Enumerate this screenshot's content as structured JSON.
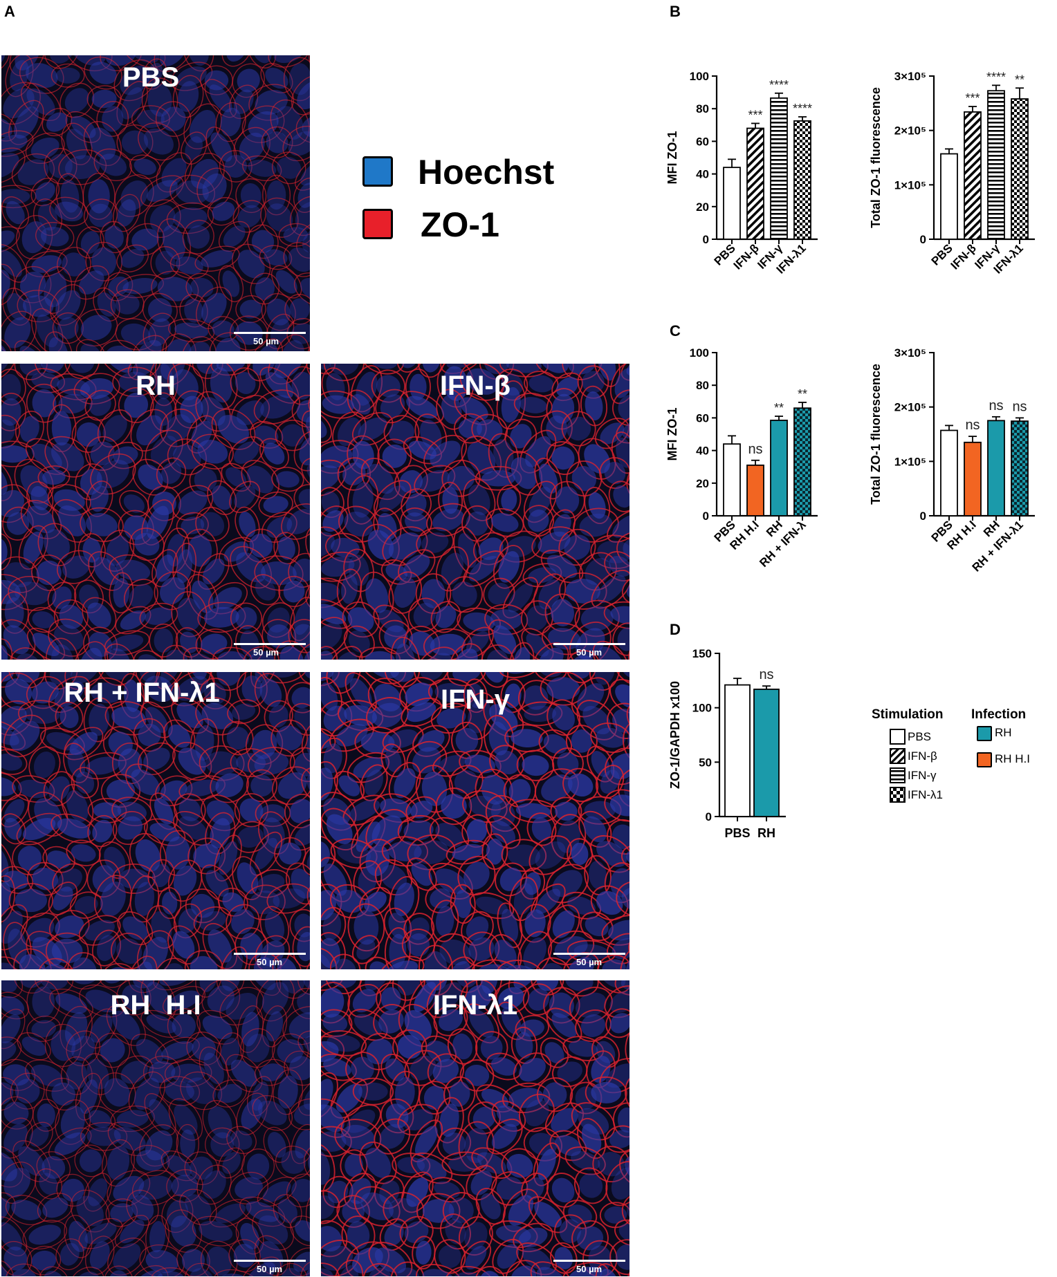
{
  "panel_labels": {
    "a": "A",
    "b": "B",
    "c": "C",
    "d": "D"
  },
  "micrographs": [
    {
      "label": "PBS",
      "scale": "50 µm"
    },
    {
      "label": "RH",
      "scale": "50 µm"
    },
    {
      "label": "IFN-β",
      "scale": "50 µm"
    },
    {
      "label": "RH + IFN-λ1",
      "scale": "50 µm"
    },
    {
      "label": "IFN-γ",
      "scale": "50 µm"
    },
    {
      "label": "RH  H.I",
      "scale": "50 µm"
    },
    {
      "label": "IFN-λ1",
      "scale": "50 µm"
    }
  ],
  "stain_legend": [
    {
      "name": "Hoechst",
      "color": "#1f78c8"
    },
    {
      "name": "ZO-1",
      "color": "#e8202a"
    }
  ],
  "chart_legend": {
    "stimulation_title": "Stimulation",
    "infection_title": "Infection",
    "stimulation": [
      {
        "name": "PBS",
        "pattern": "open"
      },
      {
        "name": "IFN-β",
        "pattern": "diagonal"
      },
      {
        "name": "IFN-γ",
        "pattern": "horizontal"
      },
      {
        "name": "IFN-λ1",
        "pattern": "checker"
      }
    ],
    "infection": [
      {
        "name": "RH",
        "color": "#1b9aaa"
      },
      {
        "name": "RH H.I",
        "color": "#f26522"
      }
    ]
  },
  "chart_data": [
    {
      "panel": "B",
      "type": "bar",
      "ylabel": "MFI ZO-1",
      "ylim": [
        0,
        100
      ],
      "yticks": [
        "0",
        "20",
        "40",
        "60",
        "80",
        "100"
      ],
      "categories": [
        "PBS",
        "IFN-β",
        "IFN-γ",
        "IFN-λ1"
      ],
      "values": [
        44,
        68,
        86.5,
        72.5
      ],
      "errors": [
        5,
        3,
        3,
        2.5
      ],
      "annotations": [
        "",
        "***",
        "****",
        "****"
      ],
      "fills": [
        "open",
        "diagonal",
        "horizontal",
        "checker"
      ]
    },
    {
      "panel": "B",
      "type": "bar",
      "ylabel": "Total ZO-1 fluorescence",
      "ylim": [
        0,
        300000
      ],
      "yticks": [
        "0",
        "1×10⁵",
        "2×10⁵",
        "3×10⁵"
      ],
      "categories": [
        "PBS",
        "IFN-β",
        "IFN-γ",
        "IFN-λ1"
      ],
      "values": [
        157000,
        234000,
        273000,
        258000
      ],
      "errors": [
        9000,
        10000,
        10000,
        20000
      ],
      "annotations": [
        "",
        "***",
        "****",
        "**"
      ],
      "fills": [
        "open",
        "diagonal",
        "horizontal",
        "checker"
      ]
    },
    {
      "panel": "C",
      "type": "bar",
      "ylabel": "MFI ZO-1",
      "ylim": [
        0,
        100
      ],
      "yticks": [
        "0",
        "20",
        "40",
        "60",
        "80",
        "100"
      ],
      "categories": [
        "PBS",
        "RH H.I",
        "RH",
        "RH + IFN-λ"
      ],
      "values": [
        44,
        31,
        58.5,
        66
      ],
      "errors": [
        5,
        3,
        2.5,
        3.5
      ],
      "annotations": [
        "",
        "ns",
        "**",
        "**"
      ],
      "fills": [
        "open",
        "orange",
        "teal",
        "teal-checker"
      ]
    },
    {
      "panel": "C",
      "type": "bar",
      "ylabel": "Total ZO-1 fluorescence",
      "ylim": [
        0,
        300000
      ],
      "yticks": [
        "0",
        "1×10⁵",
        "2×10⁵",
        "3×10⁵"
      ],
      "categories": [
        "PBS",
        "RH H.I",
        "RH",
        "RH + IFN-λ1"
      ],
      "values": [
        157000,
        135000,
        175000,
        174000
      ],
      "errors": [
        9000,
        11000,
        7000,
        6000
      ],
      "annotations": [
        "",
        "ns",
        "ns",
        "ns"
      ],
      "fills": [
        "open",
        "orange",
        "teal",
        "teal-checker"
      ]
    },
    {
      "panel": "D",
      "type": "bar",
      "ylabel": "ZO-1/GAPDH x100",
      "ylim": [
        0,
        150
      ],
      "yticks": [
        "0",
        "50",
        "100",
        "150"
      ],
      "categories": [
        "PBS",
        "RH"
      ],
      "values": [
        121,
        117
      ],
      "errors": [
        6,
        3
      ],
      "annotations": [
        "",
        "ns"
      ],
      "fills": [
        "open",
        "teal"
      ]
    }
  ]
}
